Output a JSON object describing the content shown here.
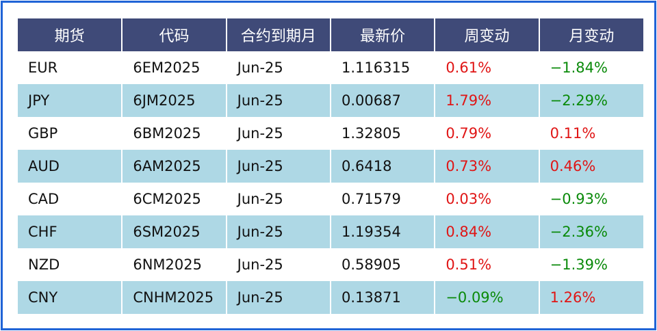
{
  "table": {
    "headers": [
      "期货",
      "代码",
      "合约到期月",
      "最新价",
      "周变动",
      "月变动"
    ],
    "rows": [
      {
        "currency": "EUR",
        "code": "6EM2025",
        "expiry": "Jun-25",
        "last": "1.116315",
        "weekly": "0.61%",
        "monthly": "−1.84%"
      },
      {
        "currency": "JPY",
        "code": "6JM2025",
        "expiry": "Jun-25",
        "last": "0.00687",
        "weekly": "1.79%",
        "monthly": "−2.29%"
      },
      {
        "currency": "GBP",
        "code": "6BM2025",
        "expiry": "Jun-25",
        "last": "1.32805",
        "weekly": "0.79%",
        "monthly": "0.11%"
      },
      {
        "currency": "AUD",
        "code": "6AM2025",
        "expiry": "Jun-25",
        "last": "0.6418",
        "weekly": "0.73%",
        "monthly": "0.46%"
      },
      {
        "currency": "CAD",
        "code": "6CM2025",
        "expiry": "Jun-25",
        "last": "0.71579",
        "weekly": "0.03%",
        "monthly": "−0.93%"
      },
      {
        "currency": "CHF",
        "code": "6SM2025",
        "expiry": "Jun-25",
        "last": "1.19354",
        "weekly": "0.84%",
        "monthly": "−2.36%"
      },
      {
        "currency": "NZD",
        "code": "6NM2025",
        "expiry": "Jun-25",
        "last": "0.58905",
        "weekly": "0.51%",
        "monthly": "−1.39%"
      },
      {
        "currency": "CNY",
        "code": "CNHM2025",
        "expiry": "Jun-25",
        "last": "0.13871",
        "weekly": "−0.09%",
        "monthly": "1.26%"
      }
    ]
  },
  "colors": {
    "header_bg": "#3f4a78",
    "stripe_bg": "#aed8e5",
    "positive": "#e01515",
    "negative": "#0a8a0a",
    "frame_border": "#1f63d6"
  }
}
